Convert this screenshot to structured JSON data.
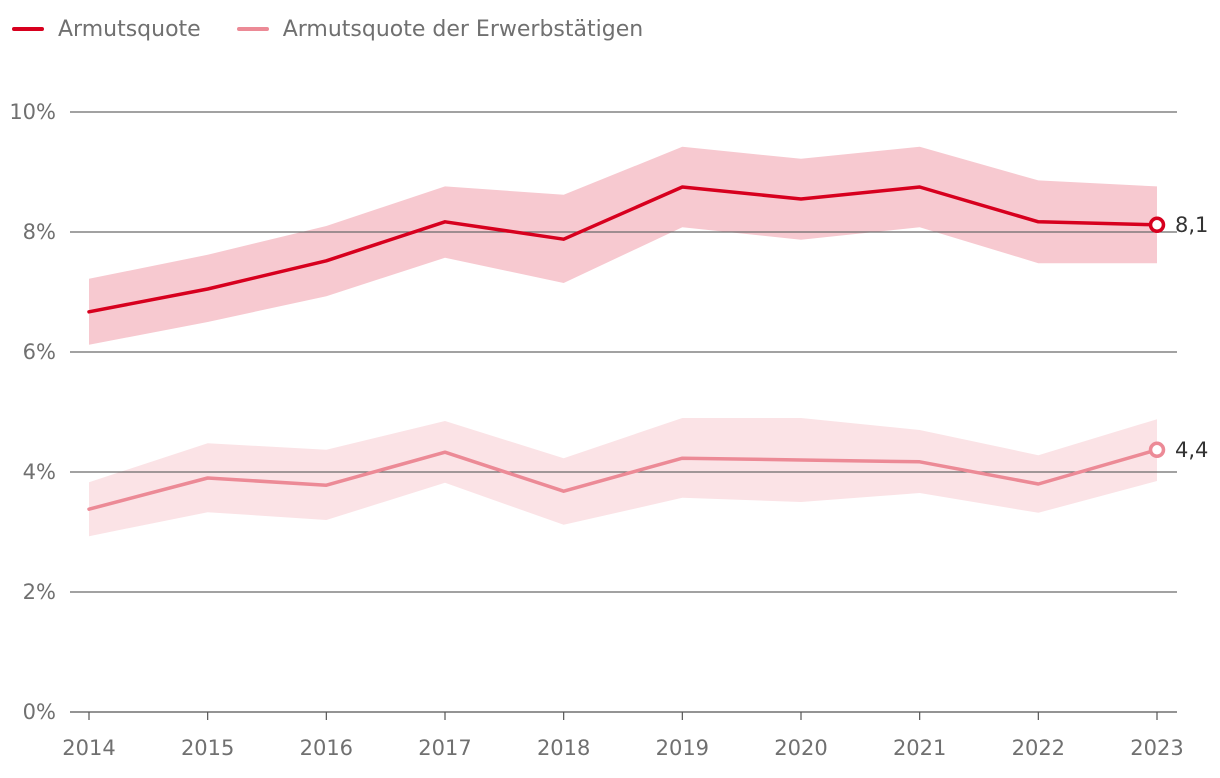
{
  "chart_data": {
    "type": "line",
    "title": "",
    "xlabel": "",
    "ylabel": "",
    "ylim": [
      0,
      10
    ],
    "y_ticks": [
      0,
      2,
      4,
      6,
      8,
      10
    ],
    "y_tick_labels": [
      "0%",
      "2%",
      "4%",
      "6%",
      "8%",
      "10%"
    ],
    "categories": [
      "2014",
      "2015",
      "2016",
      "2017",
      "2018",
      "2019",
      "2020",
      "2021",
      "2022",
      "2023"
    ],
    "series": [
      {
        "name": "Armutsquote",
        "color": "#d7001e",
        "band_color": "#f7c9d0",
        "values": [
          6.67,
          7.05,
          7.52,
          8.17,
          7.88,
          8.75,
          8.55,
          8.75,
          8.17,
          8.12
        ],
        "lower": [
          6.12,
          6.5,
          6.93,
          7.57,
          7.15,
          8.08,
          7.87,
          8.08,
          7.48,
          7.48
        ],
        "upper": [
          7.22,
          7.62,
          8.1,
          8.76,
          8.62,
          9.42,
          9.22,
          9.42,
          8.86,
          8.76
        ],
        "end_label": "8,1"
      },
      {
        "name": "Armutsquote der Erwerbstätigen",
        "color": "#ec8a96",
        "band_color": "#fbe3e6",
        "values": [
          3.38,
          3.9,
          3.78,
          4.33,
          3.68,
          4.23,
          4.2,
          4.17,
          3.8,
          4.37
        ],
        "lower": [
          2.93,
          3.33,
          3.2,
          3.82,
          3.12,
          3.57,
          3.5,
          3.65,
          3.32,
          3.85
        ],
        "upper": [
          3.83,
          4.48,
          4.37,
          4.85,
          4.23,
          4.9,
          4.9,
          4.7,
          4.28,
          4.88
        ],
        "end_label": "4,4"
      }
    ],
    "legend_position": "top-left"
  }
}
